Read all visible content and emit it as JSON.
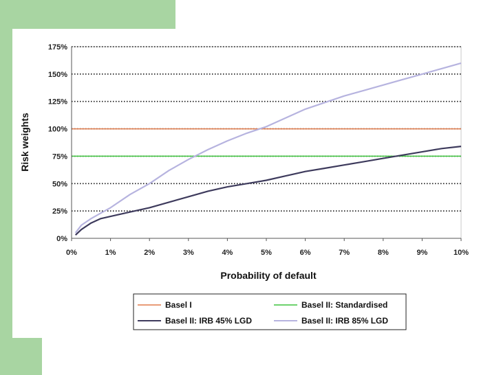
{
  "chart_data": {
    "type": "line",
    "title": "",
    "xlabel": "Probability of default",
    "ylabel": "Risk weights",
    "xlim": [
      0,
      10
    ],
    "ylim": [
      0,
      175
    ],
    "xticks": [
      "0%",
      "1%",
      "2%",
      "3%",
      "4%",
      "5%",
      "6%",
      "7%",
      "8%",
      "9%",
      "10%"
    ],
    "yticks": [
      "0%",
      "25%",
      "50%",
      "75%",
      "100%",
      "125%",
      "150%",
      "175%"
    ],
    "grid": "horizontal-dotted",
    "legend_position": "bottom",
    "x": [
      0.1,
      0.25,
      0.5,
      0.75,
      1,
      1.5,
      2,
      2.5,
      3,
      3.5,
      4,
      4.5,
      5,
      5.5,
      6,
      6.5,
      7,
      7.5,
      8,
      8.5,
      9,
      9.5,
      10
    ],
    "series": [
      {
        "name": "Basel I",
        "color": "#e07a4a",
        "style": "flat",
        "values": [
          100,
          100,
          100,
          100,
          100,
          100,
          100,
          100,
          100,
          100,
          100,
          100,
          100,
          100,
          100,
          100,
          100,
          100,
          100,
          100,
          100,
          100,
          100
        ]
      },
      {
        "name": "Basel II: Standardised",
        "color": "#3cc43c",
        "style": "flat",
        "values": [
          75,
          75,
          75,
          75,
          75,
          75,
          75,
          75,
          75,
          75,
          75,
          75,
          75,
          75,
          75,
          75,
          75,
          75,
          75,
          75,
          75,
          75,
          75
        ]
      },
      {
        "name": "Basel II: IRB 45% LGD",
        "color": "#3d3a5c",
        "style": "curve",
        "values": [
          3,
          8,
          14,
          18,
          20,
          24,
          28,
          33,
          38,
          43,
          47,
          50,
          53,
          57,
          61,
          64,
          67,
          70,
          73,
          76,
          79,
          82,
          84
        ]
      },
      {
        "name": "Basel II: IRB 85% LGD",
        "color": "#b6b3df",
        "style": "curve",
        "values": [
          5,
          12,
          18,
          23,
          28,
          40,
          50,
          62,
          72,
          81,
          89,
          96,
          102,
          110,
          118,
          124,
          130,
          135,
          140,
          145,
          150,
          155,
          160
        ]
      }
    ]
  }
}
